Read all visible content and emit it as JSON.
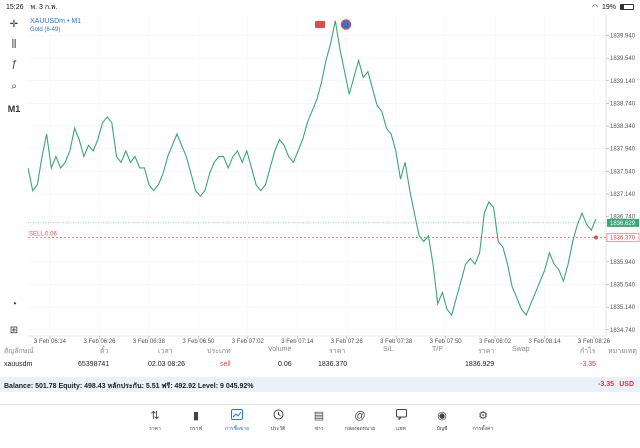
{
  "status_bar": {
    "time": "15:26",
    "date": "พ. 3 ก.พ.",
    "battery": "19%"
  },
  "chart": {
    "symbol": "XAUUSDm • M1",
    "indicator": "Gold (6-49)",
    "timeframe": "M1",
    "sell_label": "SELL 0.06"
  },
  "chart_data": {
    "type": "line",
    "color": "#3ba67a",
    "ylim": [
      1834.63,
      1840.32
    ],
    "y_ticks": [
      1839.94,
      1839.54,
      1839.14,
      1838.74,
      1838.34,
      1837.94,
      1837.54,
      1837.14,
      1836.74,
      1836.34,
      1835.94,
      1835.54,
      1835.14,
      1834.74
    ],
    "x_ticks": [
      "3 Feb 06:14",
      "3 Feb 06:26",
      "3 Feb 06:38",
      "3 Feb 06:50",
      "3 Feb 07:02",
      "3 Feb 07:14",
      "3 Feb 07:26",
      "3 Feb 07:38",
      "3 Feb 07:50",
      "3 Feb 08:02",
      "3 Feb 08:14",
      "3 Feb 08:26"
    ],
    "current_price": 1836.629,
    "current_price_label": "1836.629",
    "sell_price": 1836.37,
    "sell_price_label": "1836.370",
    "values": [
      1837.6,
      1837.2,
      1837.3,
      1837.8,
      1838.2,
      1837.6,
      1837.8,
      1837.6,
      1837.7,
      1837.9,
      1838.3,
      1838.1,
      1837.8,
      1838.0,
      1837.9,
      1838.1,
      1838.4,
      1838.5,
      1838.4,
      1837.8,
      1837.7,
      1837.9,
      1837.7,
      1837.8,
      1837.6,
      1837.6,
      1837.3,
      1837.2,
      1837.3,
      1837.5,
      1837.8,
      1838.0,
      1838.2,
      1838.0,
      1837.8,
      1837.5,
      1837.2,
      1837.1,
      1837.2,
      1837.5,
      1837.7,
      1837.8,
      1837.8,
      1837.6,
      1837.8,
      1837.9,
      1837.7,
      1837.9,
      1837.6,
      1837.3,
      1837.2,
      1837.3,
      1837.6,
      1837.9,
      1838.1,
      1838.0,
      1837.8,
      1837.7,
      1837.9,
      1838.1,
      1838.4,
      1838.6,
      1838.8,
      1839.1,
      1839.5,
      1839.8,
      1840.2,
      1839.7,
      1839.3,
      1838.9,
      1839.2,
      1839.5,
      1839.2,
      1839.3,
      1839.0,
      1838.7,
      1838.6,
      1838.3,
      1838.2,
      1837.9,
      1837.4,
      1837.7,
      1837.2,
      1836.8,
      1836.4,
      1836.3,
      1836.4,
      1835.9,
      1835.2,
      1835.4,
      1835.1,
      1835.0,
      1835.3,
      1835.6,
      1835.9,
      1836.0,
      1835.9,
      1836.1,
      1836.8,
      1837.0,
      1836.9,
      1836.3,
      1836.2,
      1835.9,
      1835.5,
      1835.3,
      1835.1,
      1835.0,
      1835.2,
      1835.4,
      1835.6,
      1835.8,
      1836.1,
      1835.9,
      1835.8,
      1835.6,
      1835.9,
      1836.3,
      1836.6,
      1836.8,
      1836.6,
      1836.5,
      1836.7
    ]
  },
  "positions": {
    "headers": [
      "สัญลักษณ์",
      "ตั๋ว",
      "เวลา",
      "ประเภท",
      "Volume",
      "ราคา",
      "S/L",
      "T/P",
      "ราคา",
      "Swap",
      "กำไร",
      "หมายเหตุ"
    ],
    "rows": [
      [
        "xauusdm",
        "65398741",
        "02.03 08:26",
        "sell",
        "0.06",
        "1836.370",
        "",
        "",
        "1836.929",
        "",
        "-3.35",
        ""
      ]
    ]
  },
  "balance": {
    "text": "Balance: 501.78 Equity: 498.43 หลักประกัน: 5.51 ฟรี: 492.92 Level: 9 045.92%",
    "profit": "-3.35",
    "currency": "USD"
  },
  "tabs": [
    {
      "icon": "quotes-icon",
      "glyph": "⇅",
      "label": "ราคา"
    },
    {
      "icon": "chart-icon",
      "glyph": "▮",
      "label": "กราฟ"
    },
    {
      "icon": "trade-icon",
      "glyph": "📈",
      "label": "การซื้อขาย",
      "active": true
    },
    {
      "icon": "history-icon",
      "glyph": "🕘",
      "label": "ประวัติ"
    },
    {
      "icon": "news-icon",
      "glyph": "▤",
      "label": "ข่าว"
    },
    {
      "icon": "mailbox-icon",
      "glyph": "@",
      "label": "กล่องจดหมาย"
    },
    {
      "icon": "chat-icon",
      "glyph": "💬",
      "label": "แชท"
    },
    {
      "icon": "account-icon",
      "glyph": "◉",
      "label": "บัญชี"
    },
    {
      "icon": "settings-icon",
      "glyph": "⚙",
      "label": "การตั้งค่า"
    }
  ],
  "colors": {
    "accent": "#2a73d9",
    "line": "#3ba67a",
    "sell": "#e04b4b",
    "loss": "#d33333"
  }
}
